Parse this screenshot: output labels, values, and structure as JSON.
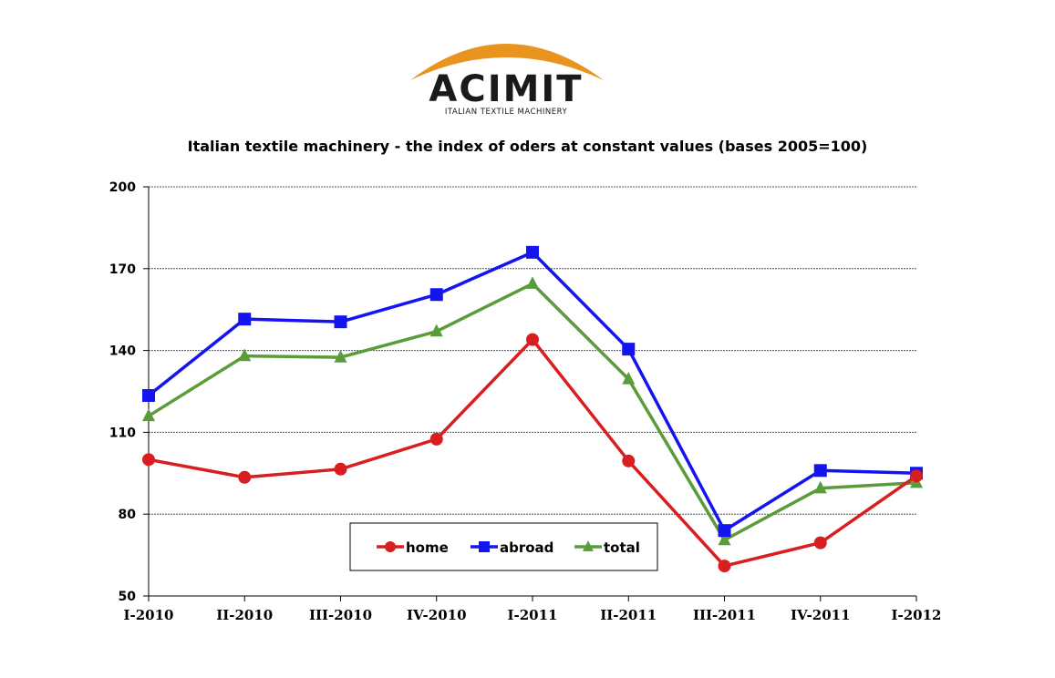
{
  "logo": {
    "name": "ACIMIT",
    "tagline": "ITALIAN TEXTILE MACHINERY",
    "arc_color": "#E8941E"
  },
  "chart_data": {
    "type": "line",
    "title": "Italian textile machinery - the index of oders at constant values (bases 2005=100)",
    "xlabel": "",
    "ylabel": "",
    "categories": [
      "I-2010",
      "II-2010",
      "III-2010",
      "IV-2010",
      "I-2011",
      "II-2011",
      "III-2011",
      "IV-2011",
      "I-2012"
    ],
    "ylim": [
      50,
      200
    ],
    "yticks": [
      50,
      80,
      110,
      140,
      170,
      200
    ],
    "grid": true,
    "legend_position": "bottom-center",
    "series": [
      {
        "name": "home",
        "color": "#D81E1E",
        "marker": "circle",
        "values": [
          100,
          93.5,
          96.5,
          107.5,
          144,
          99.5,
          61,
          69.5,
          94
        ]
      },
      {
        "name": "abroad",
        "color": "#1414F0",
        "marker": "square",
        "values": [
          123.5,
          151.5,
          150.5,
          160.5,
          176,
          140.5,
          74,
          96,
          95
        ]
      },
      {
        "name": "total",
        "color": "#5A9C3A",
        "marker": "triangle",
        "values": [
          116,
          138,
          137.5,
          147,
          164.5,
          129.5,
          70.5,
          89.5,
          91.5
        ]
      }
    ]
  }
}
